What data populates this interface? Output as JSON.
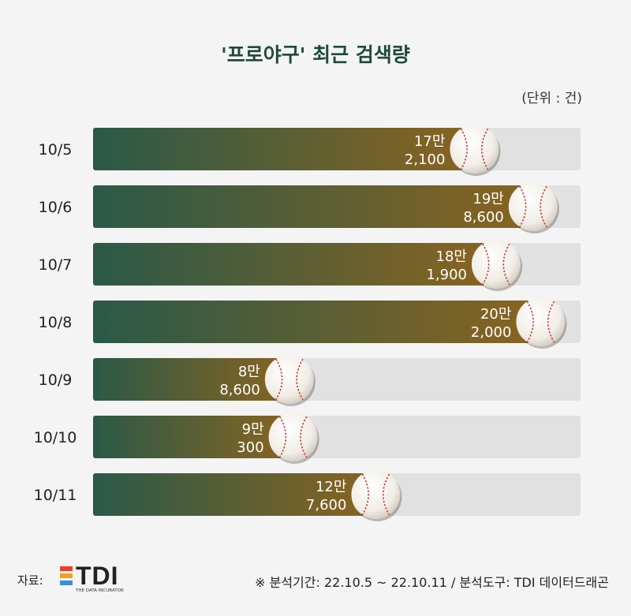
{
  "title": "'프로야구' 최근 검색량",
  "unit": "(단위 : 건)",
  "footer": {
    "source_label": "자료:",
    "logo_text": "TDI",
    "logo_sub": "THE DATA INCUBATOR",
    "note": "※ 분석기간: 22.10.5 ~ 22.10.11 / 분석도구: TDI 데이터드래곤"
  },
  "colors": {
    "bar_start": "#2a5948",
    "bar_end": "#8a6420",
    "track": "#e1e1e1",
    "logo_stripes": [
      "#e8412a",
      "#f4a21b",
      "#3b8fd6"
    ]
  },
  "chart_data": {
    "type": "bar",
    "orientation": "horizontal",
    "categories": [
      "10/5",
      "10/6",
      "10/7",
      "10/8",
      "10/9",
      "10/10",
      "10/11"
    ],
    "values": [
      172100,
      198600,
      181900,
      202000,
      88600,
      90300,
      127600
    ],
    "value_labels": [
      [
        "17만",
        "2,100"
      ],
      [
        "19만",
        "8,600"
      ],
      [
        "18만",
        "1,900"
      ],
      [
        "20만",
        "2,000"
      ],
      [
        "8만",
        "8,600"
      ],
      [
        "9만",
        "300"
      ],
      [
        "12만",
        "7,600"
      ]
    ],
    "xlim": [
      0,
      220000
    ]
  }
}
